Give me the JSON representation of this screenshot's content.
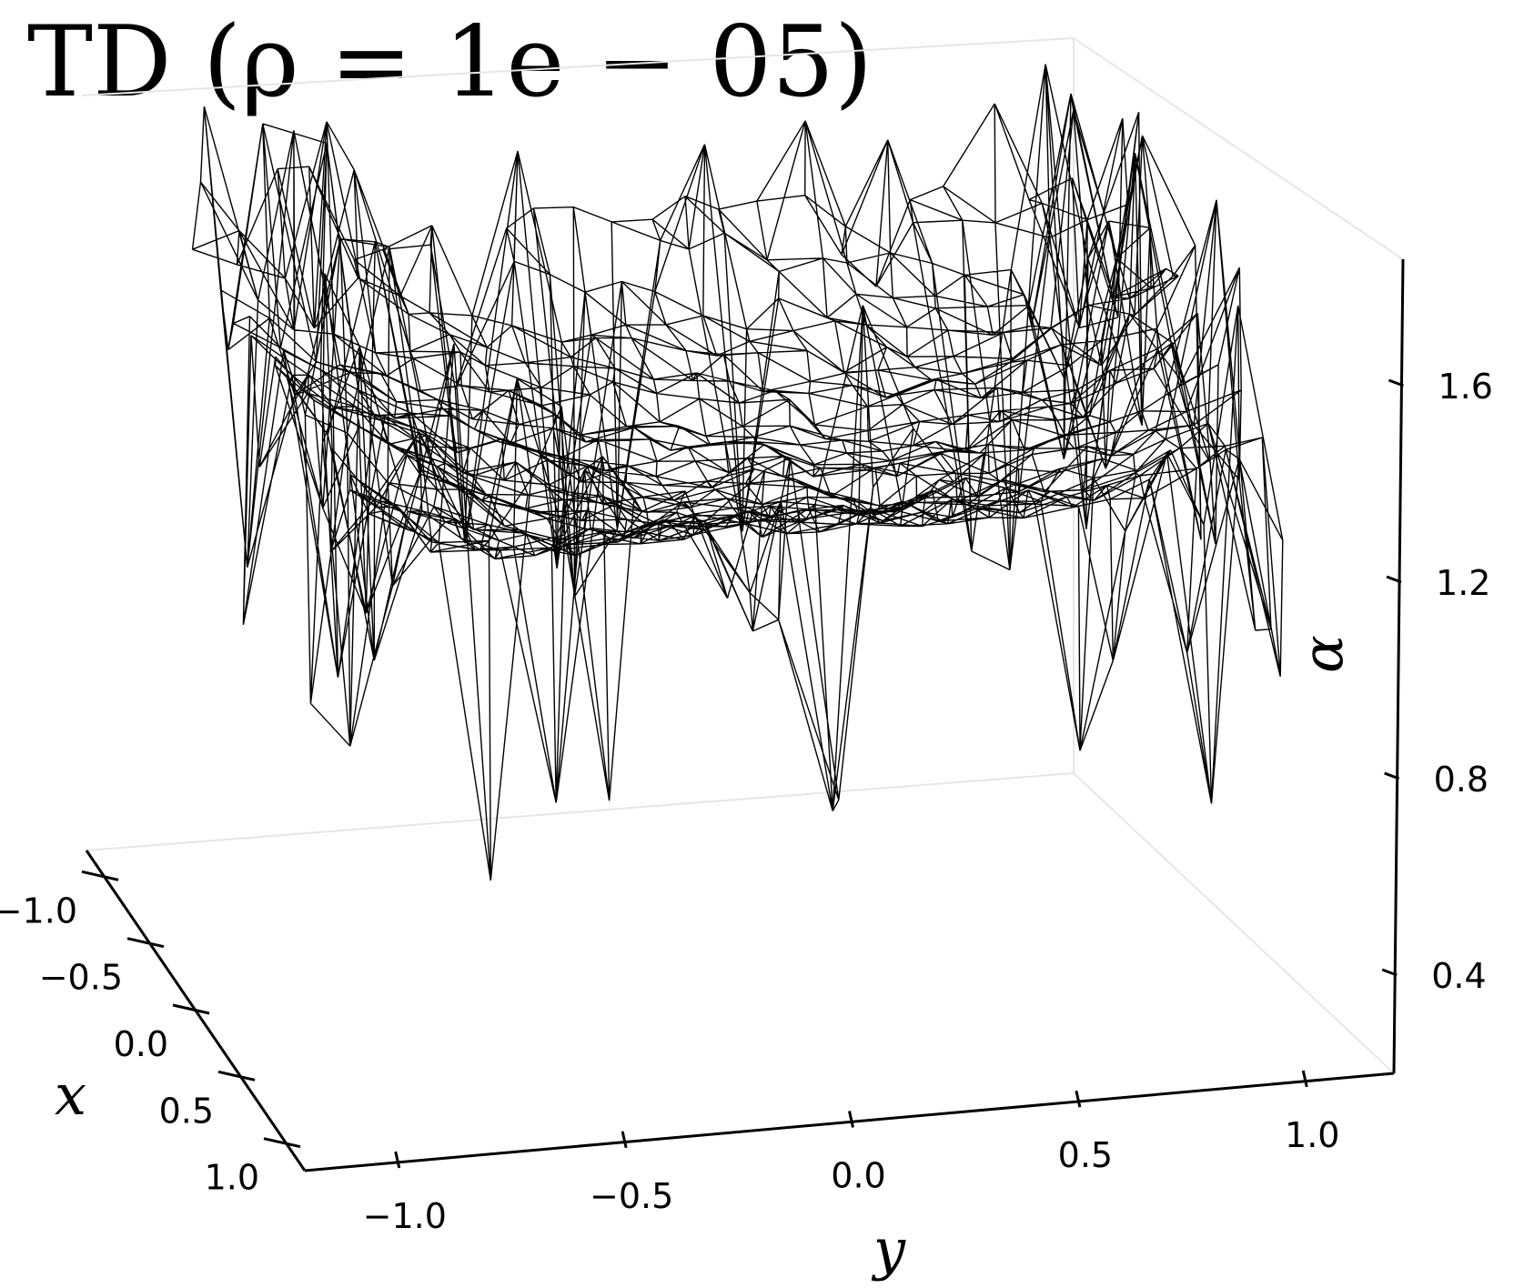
{
  "chart_data": {
    "type": "surface-3d-wireframe",
    "title": "TD (ρ = 1e − 05)",
    "xlabel": "x",
    "ylabel": "y",
    "zlabel": "α",
    "x_ticks": [
      "−1.0",
      "−0.5",
      "0.0",
      "0.5",
      "1.0"
    ],
    "y_ticks": [
      "−1.0",
      "−0.5",
      "0.0",
      "0.5",
      "1.0"
    ],
    "z_ticks": [
      "0.4",
      "0.8",
      "1.2",
      "1.6"
    ],
    "xlim": [
      -1.2,
      1.2
    ],
    "ylim": [
      -1.2,
      1.2
    ],
    "zlim": [
      0.2,
      1.9
    ],
    "grid": false,
    "surface_description_values": {
      "center_value": 1.2,
      "edge_value": 1.45,
      "spike_range": [
        0.7,
        1.85
      ]
    }
  }
}
